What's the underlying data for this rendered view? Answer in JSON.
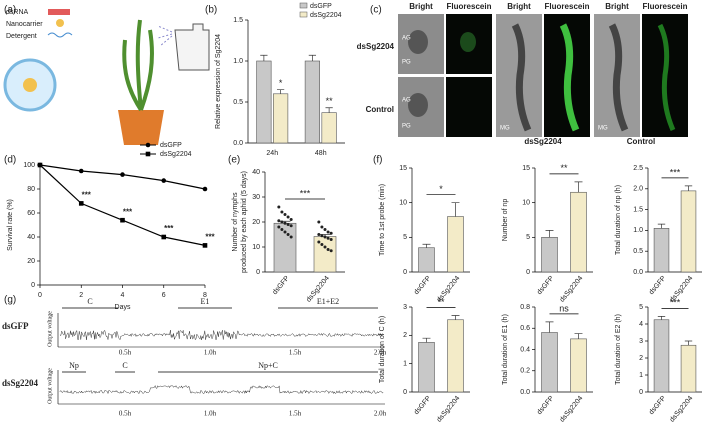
{
  "panel_labels": [
    "(a)",
    "(b)",
    "(c)",
    "(d)",
    "(e)",
    "(f)",
    "(g)"
  ],
  "illustration_a": {
    "labels": [
      "dsRNA",
      "Nanocarrier",
      "Detergent"
    ]
  },
  "images_c": {
    "column_headers": [
      "Bright",
      "Fluorescein",
      "Bright",
      "Fluorescein",
      "Bright",
      "Fluorescein"
    ],
    "row_labels": [
      "dsSg2204",
      "Control"
    ],
    "bottom_labels": [
      "dsSg2204",
      "Control"
    ],
    "organ_labels": [
      "AG",
      "PG",
      "AG",
      "PG",
      "MG",
      "MG"
    ]
  },
  "epg_g": {
    "rows": [
      {
        "name": "dsGFP",
        "y_label": "Output voltage",
        "phases": [
          "C",
          "E1",
          "E1+E2"
        ],
        "time_labels": [
          "0.5h",
          "1.0h",
          "1.5h",
          "2.0h"
        ]
      },
      {
        "name": "dsSg2204",
        "y_label": "Output voltage",
        "phases": [
          "Np",
          "C",
          "Np+C"
        ],
        "time_labels": [
          "0.5h",
          "1.0h",
          "1.5h",
          "2.0h"
        ]
      }
    ]
  },
  "chart_data": [
    {
      "type": "bar",
      "y_label": "Relative expression of Sg2204",
      "categories": [
        "24h",
        "48h"
      ],
      "series": [
        {
          "name": "dsGFP",
          "color": "#c8c8c8",
          "values": [
            1.0,
            1.0
          ],
          "errors": [
            0.07,
            0.07
          ]
        },
        {
          "name": "dsSg2204",
          "color": "#f3ebc8",
          "values": [
            0.6,
            0.37
          ],
          "errors": [
            0.05,
            0.06
          ]
        }
      ],
      "significance": [
        "*",
        "**"
      ],
      "ylim": [
        0,
        1.5
      ],
      "yticks": [
        {
          "value": 0,
          "label": "0.0"
        },
        0.5,
        {
          "value": 1,
          "label": "1.0"
        },
        1.5
      ]
    },
    {
      "type": "line",
      "x_label": "Days",
      "y_label": "Survival rate (%)",
      "x": [
        0,
        2,
        4,
        6,
        8
      ],
      "series": [
        {
          "name": "dsGFP",
          "color": "#000000",
          "marker": "circle",
          "values": [
            100,
            95,
            92,
            87,
            80
          ]
        },
        {
          "name": "dsSg2204",
          "color": "#000000",
          "marker": "square",
          "values": [
            100,
            68,
            54,
            40,
            33
          ]
        }
      ],
      "significance": [
        null,
        "***",
        "***",
        "***",
        "***"
      ],
      "xlim": [
        0,
        8
      ],
      "xticks": [
        0,
        2,
        4,
        6,
        8
      ],
      "ylim": [
        0,
        100
      ],
      "yticks": [
        0,
        20,
        40,
        60,
        80,
        100
      ]
    },
    {
      "type": "bar",
      "y_label": [
        "Number of nymphs",
        "produced by each aphid (5 days)"
      ],
      "categories": [
        "dsGFP",
        "dsSg2204"
      ],
      "values": [
        19.5,
        14.2
      ],
      "errors": [
        0.8,
        0.8
      ],
      "colors": [
        "#c8c8c8",
        "#f3ebc8"
      ],
      "points": [
        [
          26,
          24,
          23,
          22,
          21,
          20.5,
          20,
          19.5,
          19,
          18.5,
          18,
          17,
          16,
          15,
          14
        ],
        [
          20,
          18,
          17,
          16,
          15.5,
          15,
          14.5,
          14,
          13.5,
          13,
          12,
          11,
          10,
          9,
          8.5
        ]
      ],
      "significance": "***",
      "ylim": [
        0,
        40
      ],
      "yticks": [
        0,
        10,
        20,
        30,
        40
      ]
    },
    {
      "type": "bar",
      "y_label": "Time to 1st probe (min)",
      "categories": [
        "dsGFP",
        "dsSg2204"
      ],
      "values": [
        3.5,
        8
      ],
      "errors": [
        0.5,
        2
      ],
      "colors": [
        "#c8c8c8",
        "#f3ebc8"
      ],
      "significance": "*",
      "ylim": [
        0,
        15
      ],
      "yticks": [
        0,
        5,
        10,
        15
      ]
    },
    {
      "type": "bar",
      "y_label": "Number of np",
      "categories": [
        "dsGFP",
        "dsSg2204"
      ],
      "values": [
        5,
        11.5
      ],
      "errors": [
        1,
        1.5
      ],
      "colors": [
        "#c8c8c8",
        "#f3ebc8"
      ],
      "significance": "**",
      "ylim": [
        0,
        15
      ],
      "yticks": [
        0,
        5,
        10,
        15
      ]
    },
    {
      "type": "bar",
      "y_label": "Total duration of np (h)",
      "categories": [
        "dsGFP",
        "dsSg2204"
      ],
      "values": [
        1.05,
        1.95
      ],
      "errors": [
        0.1,
        0.12
      ],
      "colors": [
        "#c8c8c8",
        "#f3ebc8"
      ],
      "significance": "***",
      "ylim": [
        0,
        2.5
      ],
      "yticks": [
        {
          "value": 0,
          "label": "0.0"
        },
        0.5,
        {
          "value": 1,
          "label": "1.0"
        },
        1.5,
        {
          "value": 2,
          "label": "2.0"
        },
        2.5
      ]
    },
    {
      "type": "bar",
      "y_label": "Total duration of C (h)",
      "categories": [
        "dsGFP",
        "dsSg2204"
      ],
      "values": [
        1.75,
        2.55
      ],
      "errors": [
        0.15,
        0.15
      ],
      "colors": [
        "#c8c8c8",
        "#f3ebc8"
      ],
      "significance": "**",
      "ylim": [
        0,
        3
      ],
      "yticks": [
        0,
        1,
        2,
        3
      ]
    },
    {
      "type": "bar",
      "y_label": "Total duration of E1 (h)",
      "categories": [
        "dsGFP",
        "dsSg2204"
      ],
      "values": [
        0.56,
        0.5
      ],
      "errors": [
        0.1,
        0.05
      ],
      "colors": [
        "#c8c8c8",
        "#f3ebc8"
      ],
      "significance": "ns",
      "ylim": [
        0,
        0.8
      ],
      "yticks": [
        {
          "value": 0,
          "label": "0.0"
        },
        0.2,
        0.4,
        0.6,
        0.8
      ]
    },
    {
      "type": "bar",
      "y_label": "Total duration of E2 (h)",
      "categories": [
        "dsGFP",
        "dsSg2204"
      ],
      "values": [
        4.25,
        2.75
      ],
      "errors": [
        0.2,
        0.25
      ],
      "colors": [
        "#c8c8c8",
        "#f3ebc8"
      ],
      "significance": "***",
      "ylim": [
        0,
        5
      ],
      "yticks": [
        0,
        1,
        2,
        3,
        4,
        5
      ]
    }
  ]
}
